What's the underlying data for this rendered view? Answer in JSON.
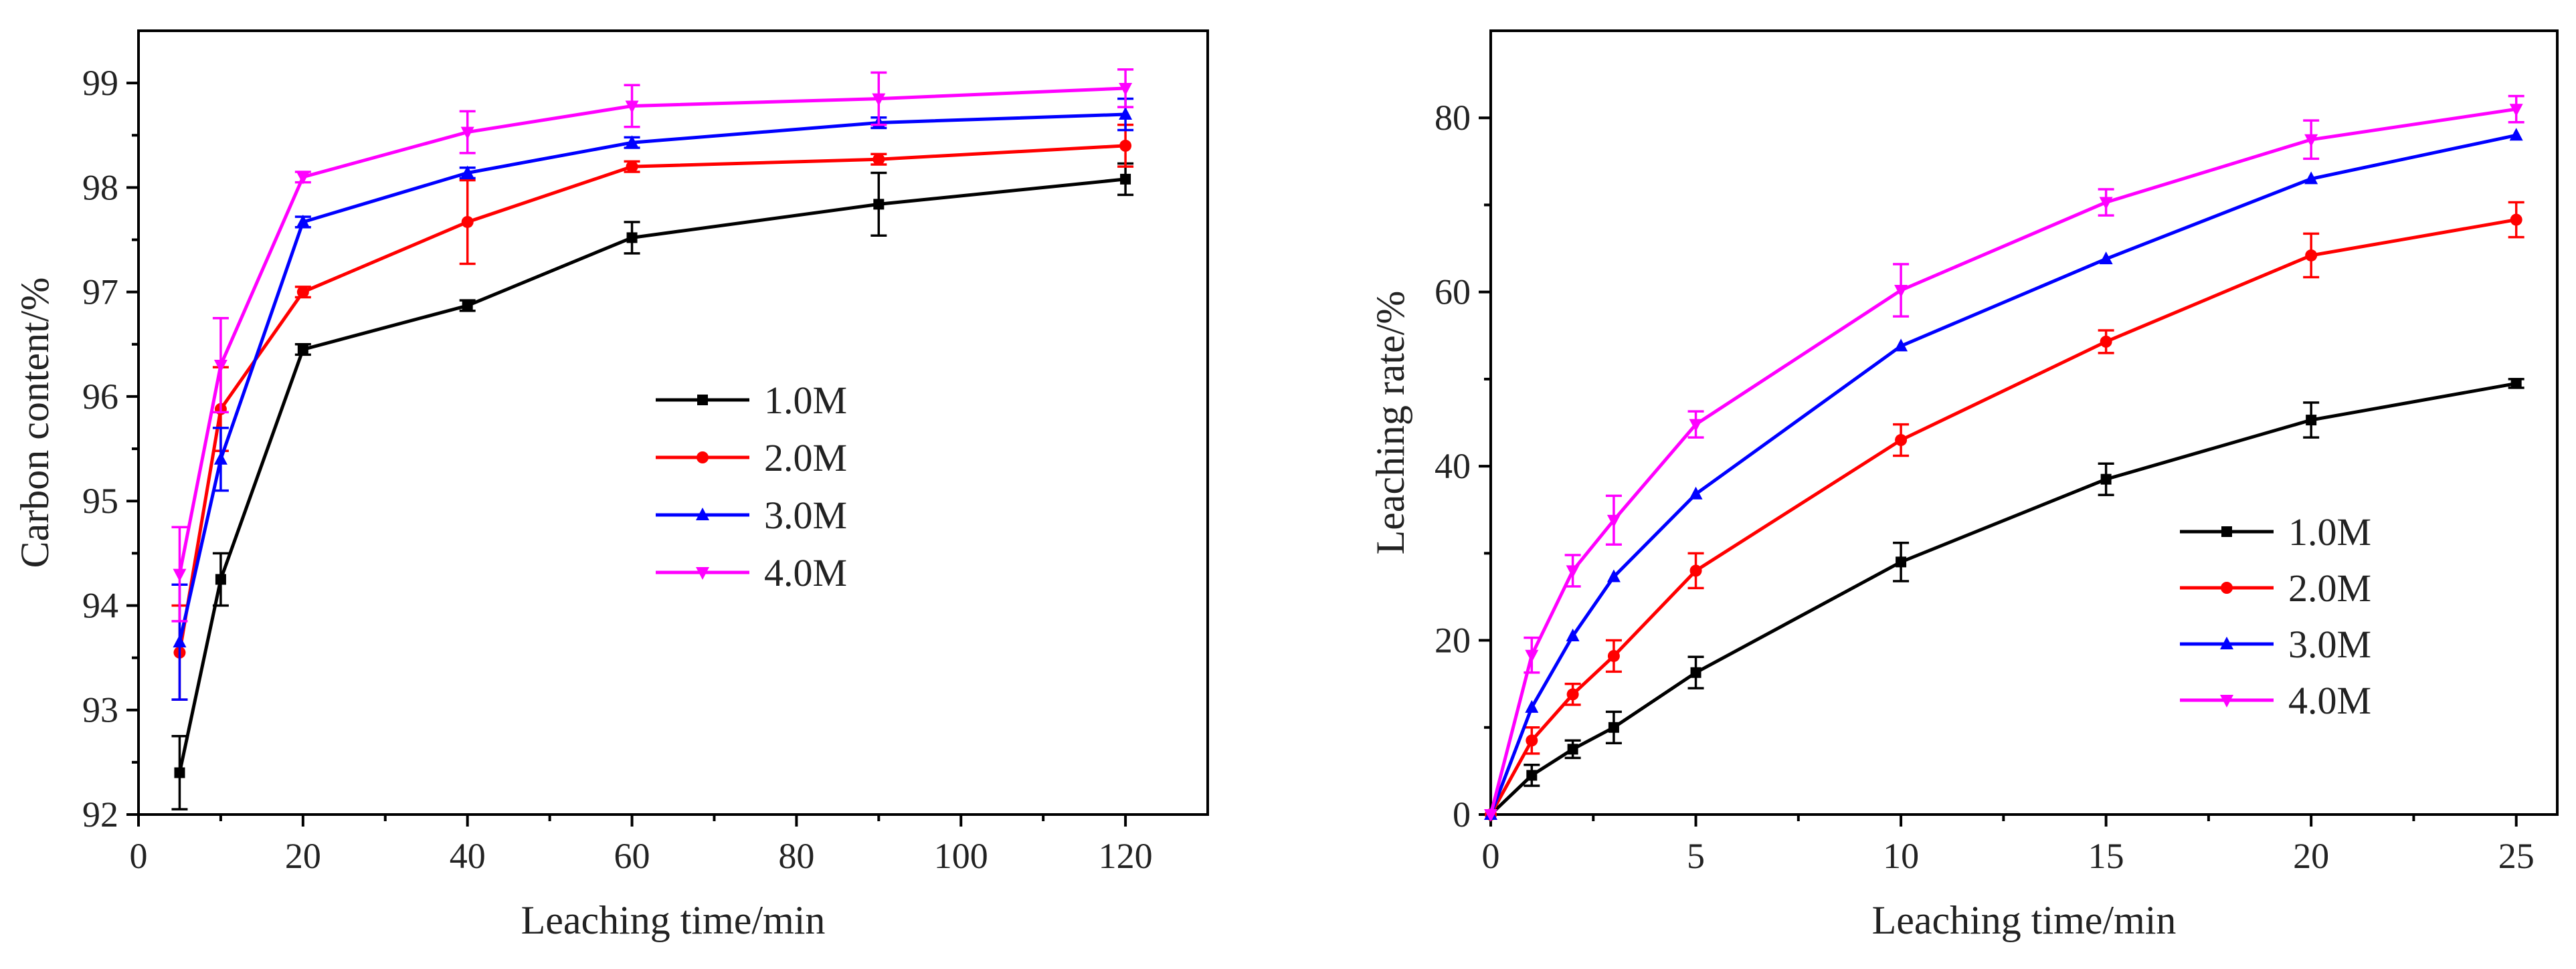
{
  "chart_data": [
    {
      "type": "line",
      "xlabel": "Leaching time/min",
      "ylabel": "Carbon content/%",
      "xlim": [
        0,
        130
      ],
      "ylim": [
        92,
        99.5
      ],
      "xticks": [
        0,
        20,
        40,
        60,
        80,
        100,
        120
      ],
      "yticks": [
        92,
        93,
        94,
        95,
        96,
        97,
        98,
        99
      ],
      "x": [
        5,
        10,
        20,
        40,
        60,
        90,
        120
      ],
      "legend_position": "center",
      "series": [
        {
          "name": "1.0M",
          "color": "#000000",
          "marker": "square",
          "values": [
            92.4,
            94.25,
            96.45,
            96.87,
            97.52,
            97.84,
            98.08
          ],
          "errors": [
            0.35,
            0.25,
            0.05,
            0.05,
            0.15,
            0.3,
            0.15
          ]
        },
        {
          "name": "2.0M",
          "color": "#ff0000",
          "marker": "circle",
          "values": [
            93.55,
            95.88,
            97.0,
            97.67,
            98.2,
            98.27,
            98.4
          ],
          "errors": [
            0.45,
            0.4,
            0.05,
            0.4,
            0.05,
            0.05,
            0.2
          ]
        },
        {
          "name": "3.0M",
          "color": "#0000ff",
          "marker": "triangle-up",
          "values": [
            93.65,
            95.4,
            97.67,
            98.14,
            98.43,
            98.62,
            98.7
          ],
          "errors": [
            0.55,
            0.3,
            0.05,
            0.05,
            0.05,
            0.05,
            0.15
          ]
        },
        {
          "name": "4.0M",
          "color": "#ff00ff",
          "marker": "triangle-down",
          "values": [
            94.3,
            96.3,
            98.1,
            98.53,
            98.78,
            98.85,
            98.95
          ],
          "errors": [
            0.45,
            0.45,
            0.05,
            0.2,
            0.2,
            0.25,
            0.18
          ]
        }
      ]
    },
    {
      "type": "line",
      "xlabel": "Leaching time/min",
      "ylabel": "Leaching rate/%",
      "xlim": [
        0,
        26
      ],
      "ylim": [
        0,
        90
      ],
      "xticks": [
        0,
        5,
        10,
        15,
        20,
        25
      ],
      "yticks": [
        0,
        20,
        40,
        60,
        80
      ],
      "x": [
        0,
        1,
        2,
        3,
        5,
        10,
        15,
        20,
        25
      ],
      "legend_position": "lower-right",
      "series": [
        {
          "name": "1.0M",
          "color": "#000000",
          "marker": "square",
          "values": [
            0,
            4.5,
            7.5,
            10,
            16.3,
            29,
            38.5,
            45.3,
            49.5
          ],
          "errors": [
            0,
            1.2,
            1,
            1.8,
            1.8,
            2.2,
            1.8,
            2,
            0.5
          ]
        },
        {
          "name": "2.0M",
          "color": "#ff0000",
          "marker": "circle",
          "values": [
            0,
            8.5,
            13.8,
            18.2,
            28,
            43,
            54.3,
            64.2,
            68.3
          ],
          "errors": [
            0,
            1.5,
            1.2,
            1.8,
            2,
            1.8,
            1.3,
            2.5,
            2
          ]
        },
        {
          "name": "3.0M",
          "color": "#0000ff",
          "marker": "triangle-up",
          "values": [
            0,
            12.3,
            20.5,
            27.3,
            36.8,
            53.8,
            63.8,
            73,
            78
          ]
        },
        {
          "name": "4.0M",
          "color": "#ff00ff",
          "marker": "triangle-down",
          "values": [
            0,
            18.3,
            28,
            33.8,
            44.8,
            60.2,
            70.3,
            77.5,
            81
          ],
          "errors": [
            0,
            2,
            1.8,
            2.8,
            1.5,
            3,
            1.5,
            2.2,
            1.5
          ]
        }
      ]
    }
  ]
}
